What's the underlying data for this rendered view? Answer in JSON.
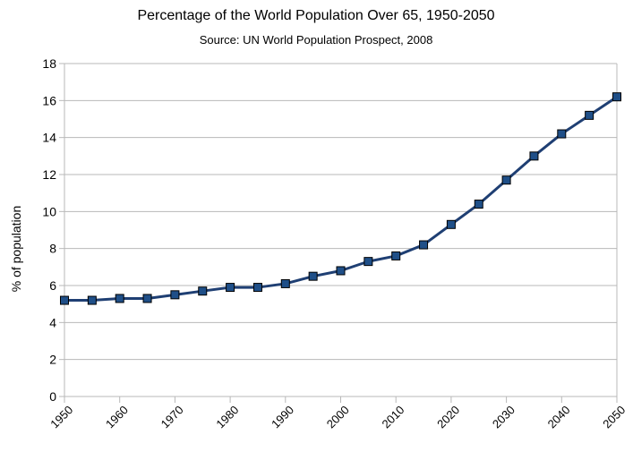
{
  "chart_data": {
    "type": "line",
    "title": "Percentage of the World Population Over 65, 1950-2050",
    "subtitle": "Source: UN World Population Prospect, 2008",
    "xlabel": "",
    "ylabel": "% of population",
    "x": [
      1950,
      1955,
      1960,
      1965,
      1970,
      1975,
      1980,
      1985,
      1990,
      1995,
      2000,
      2005,
      2010,
      2015,
      2020,
      2025,
      2030,
      2035,
      2040,
      2045,
      2050
    ],
    "x_tick_labels": [
      "1950",
      "1960",
      "1970",
      "1980",
      "1990",
      "2000",
      "2010",
      "2020",
      "2030",
      "2040",
      "2050"
    ],
    "y_tick_labels": [
      "0",
      "2",
      "4",
      "6",
      "8",
      "10",
      "12",
      "14",
      "16",
      "18"
    ],
    "xlim": [
      1950,
      2050
    ],
    "ylim": [
      0,
      18
    ],
    "grid": "horizontal",
    "series": [
      {
        "values": [
          5.2,
          5.2,
          5.3,
          5.3,
          5.5,
          5.7,
          5.9,
          5.9,
          6.1,
          6.5,
          6.8,
          7.3,
          7.6,
          8.2,
          9.3,
          10.4,
          11.7,
          13.0,
          14.2,
          15.2,
          16.2
        ],
        "line_color": "#1f3f73",
        "marker_color": "#1f4f88",
        "marker_edge_color": "#000000",
        "marker": "square"
      }
    ],
    "colors": {
      "grid": "#b8b8b8",
      "axis": "#b8b8b8"
    }
  }
}
